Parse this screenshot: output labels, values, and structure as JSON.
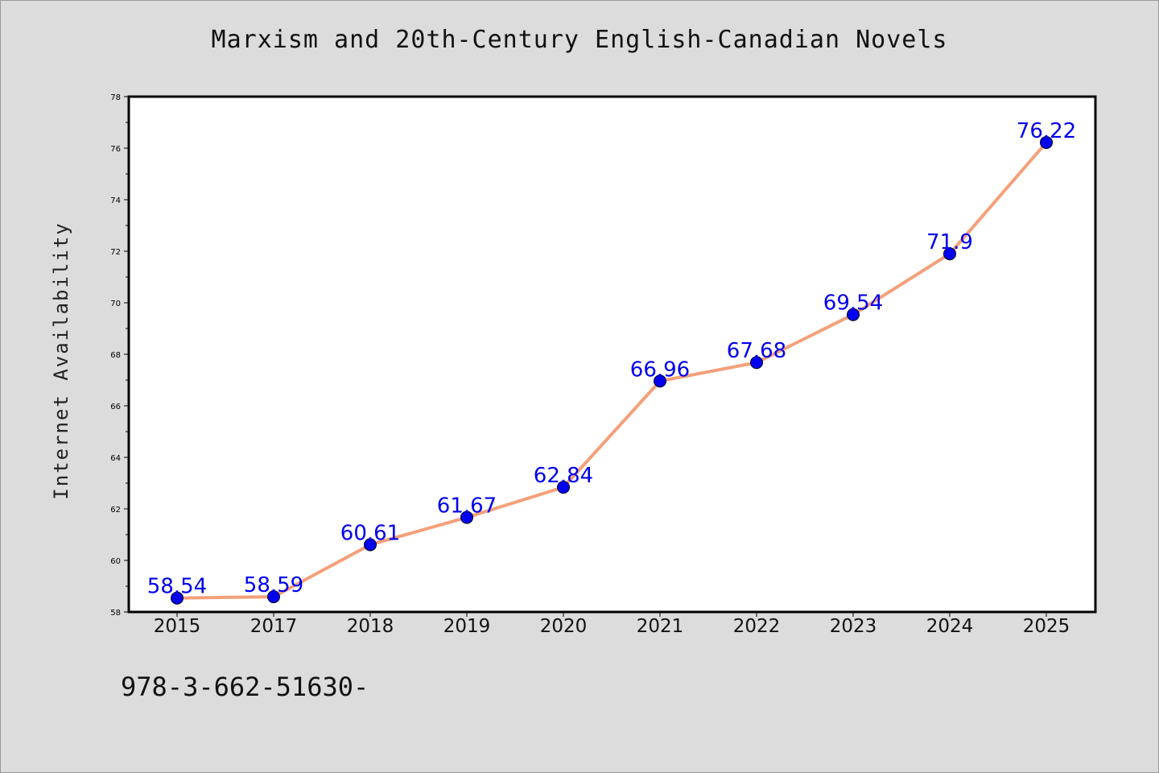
{
  "title": "Marxism and 20th-Century English-Canadian Novels",
  "footer_text": "978-3-662-51630-",
  "chart_data": {
    "type": "line",
    "title": "Marxism and 20th-Century English-Canadian Novels",
    "xlabel": "",
    "ylabel": "Internet Availability",
    "categories": [
      "2015",
      "2017",
      "2018",
      "2019",
      "2020",
      "2021",
      "2022",
      "2023",
      "2024",
      "2025"
    ],
    "series": [
      {
        "values": [
          58.54,
          58.59,
          60.61,
          61.67,
          62.84,
          66.96,
          67.68,
          69.54,
          71.9,
          76.22
        ],
        "labels": [
          "58.54",
          "58.59",
          "60.61",
          "61.67",
          "62.84",
          "66.96",
          "67.68",
          "69.54",
          "71.9",
          "76.22"
        ],
        "line_color": "#f4a07a",
        "marker_color": "#0000ee",
        "label_color": "#0000ee"
      }
    ],
    "ylim": [
      58,
      78
    ],
    "yticks": [
      58,
      60,
      62,
      64,
      66,
      68,
      70,
      72,
      74,
      76,
      78
    ],
    "grid": false,
    "legend": "none"
  },
  "colors": {
    "background": "#dcdcdc",
    "plot_background": "#ffffff",
    "axis": "#000000"
  }
}
